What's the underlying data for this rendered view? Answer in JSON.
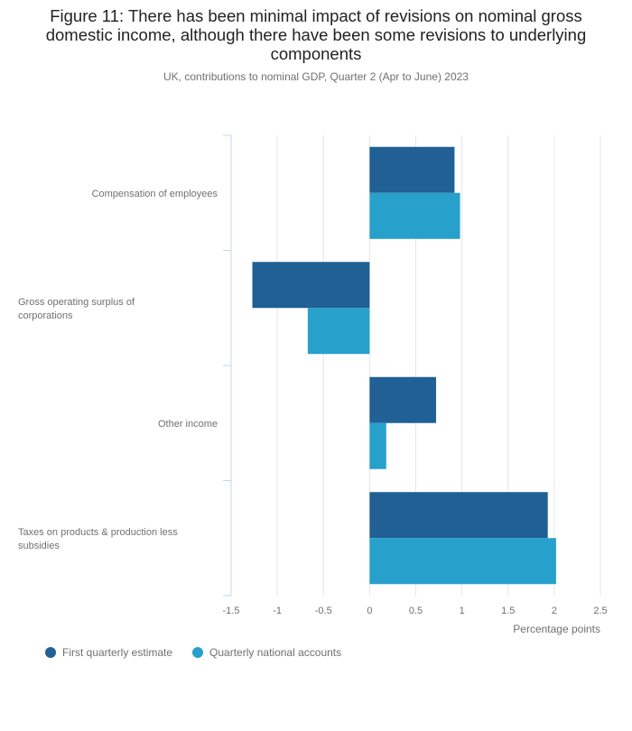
{
  "title": "Figure 11: There has been minimal impact of revisions on nominal gross domestic income, although there have been some revisions to underlying components",
  "subtitle": "UK, contributions to nominal GDP, Quarter 2 (Apr to June) 2023",
  "colors": {
    "series1": "#206095",
    "series2": "#27a0cc",
    "grid": "#e6e6e6",
    "axis": "#bcd8ef"
  },
  "chart_data": {
    "type": "bar",
    "orientation": "horizontal",
    "categories": [
      "Compensation of employees",
      "Gross operating surplus of corporations",
      "Other income",
      "Taxes on products & production less subsidies"
    ],
    "series": [
      {
        "name": "First quarterly estimate",
        "values": [
          0.92,
          -1.27,
          0.72,
          1.93
        ]
      },
      {
        "name": "Quarterly national accounts",
        "values": [
          0.98,
          -0.67,
          0.18,
          2.02
        ]
      }
    ],
    "xlim": [
      -1.5,
      2.5
    ],
    "xticks": [
      "-1.5",
      "-1",
      "-0.5",
      "0",
      "0.5",
      "1",
      "1.5",
      "2",
      "2.5"
    ],
    "xlabel": "Percentage points",
    "ylabel": "",
    "grid": true,
    "legend": "bottom-left"
  }
}
